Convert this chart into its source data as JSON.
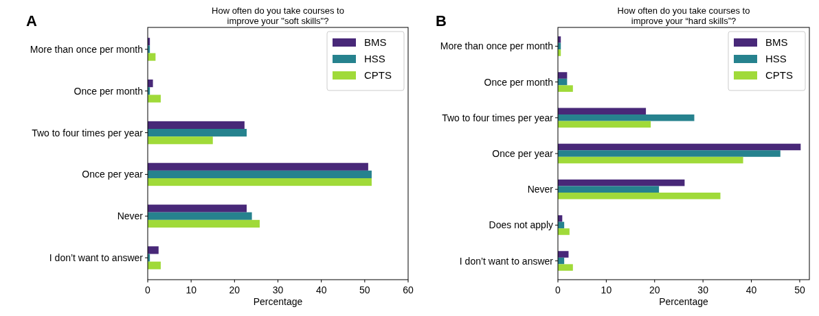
{
  "chart_data": [
    {
      "type": "bar",
      "orientation": "horizontal",
      "title": "How often do you take courses to\nimprove your \"soft skills\"?",
      "xlabel": "Percentage",
      "annotations": [
        "A"
      ],
      "categories": [
        "More than once per month",
        "Once per month",
        "Two to four times per year",
        "Once per year",
        "Never",
        "I don’t want to answer"
      ],
      "series": [
        {
          "name": "BMS",
          "color": "#482878",
          "values": [
            0.5,
            1.2,
            22.3,
            50.8,
            22.8,
            2.5
          ]
        },
        {
          "name": "HSS",
          "color": "#26828e",
          "values": [
            0.5,
            0.5,
            22.8,
            51.6,
            24.0,
            0.5
          ]
        },
        {
          "name": "CPTS",
          "color": "#a0da39",
          "values": [
            1.8,
            3.0,
            15.0,
            51.6,
            25.8,
            3.0
          ]
        }
      ],
      "xlim": [
        0,
        60
      ],
      "xticks": [
        0,
        10,
        20,
        30,
        40,
        50,
        60
      ],
      "legend": "top right",
      "grid": false
    },
    {
      "type": "bar",
      "orientation": "horizontal",
      "title": "How often do you take courses to\nimprove your “hard skills”?",
      "xlabel": "Percentage",
      "annotations": [
        "B"
      ],
      "categories": [
        "More than once per month",
        "Once per month",
        "Two to four times per year",
        "Once per year",
        "Never",
        "Does not apply",
        "I don’t want to answer"
      ],
      "series": [
        {
          "name": "BMS",
          "color": "#482878",
          "values": [
            0.6,
            1.9,
            18.2,
            50.2,
            26.2,
            0.9,
            2.2
          ]
        },
        {
          "name": "HSS",
          "color": "#26828e",
          "values": [
            0.6,
            1.9,
            28.2,
            46.0,
            20.9,
            1.3,
            1.3
          ]
        },
        {
          "name": "CPTS",
          "color": "#a0da39",
          "values": [
            0.6,
            3.1,
            19.2,
            38.3,
            33.6,
            2.4,
            3.1
          ]
        }
      ],
      "xlim": [
        0,
        52
      ],
      "xticks": [
        0,
        10,
        20,
        30,
        40,
        50
      ],
      "legend": "top right",
      "grid": false
    }
  ]
}
